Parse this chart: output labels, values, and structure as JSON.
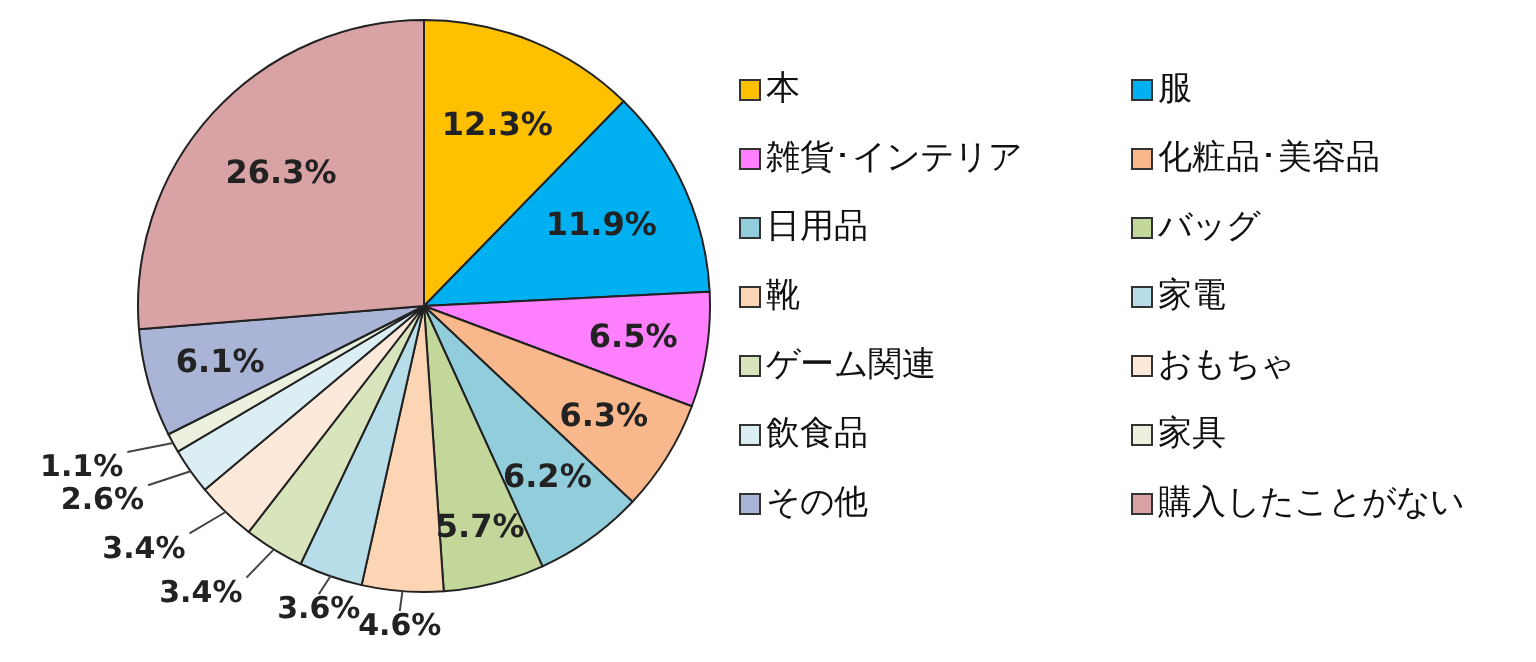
{
  "chart_data": {
    "type": "pie",
    "categories": [
      "本",
      "服",
      "雑貨･インテリア",
      "化粧品･美容品",
      "日用品",
      "バッグ",
      "靴",
      "家電",
      "ゲーム関連",
      "おもちゃ",
      "飲食品",
      "家具",
      "その他",
      "購入したことがない"
    ],
    "values": [
      12.3,
      11.9,
      6.5,
      6.3,
      6.2,
      5.7,
      4.6,
      3.6,
      3.4,
      3.4,
      2.6,
      1.1,
      6.1,
      26.3
    ],
    "value_labels": [
      "12.3%",
      "11.9%",
      "6.5%",
      "6.3%",
      "6.2%",
      "5.7%",
      "4.6%",
      "3.6%",
      "3.4%",
      "3.4%",
      "2.6%",
      "1.1%",
      "6.1%",
      "26.3%"
    ],
    "colors": [
      "#ffc000",
      "#00b0f0",
      "#ff80ff",
      "#f8b88c",
      "#92cddc",
      "#c4d79b",
      "#fcd5b5",
      "#b7dee8",
      "#d8e4bc",
      "#fde9d9",
      "#dbeef4",
      "#ebf1de",
      "#a9b4d6",
      "#d9a3a6"
    ],
    "legend": "right"
  }
}
